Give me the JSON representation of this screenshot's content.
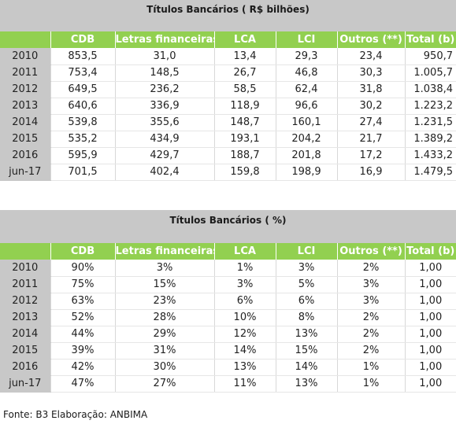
{
  "table_amounts": {
    "title": "Títulos Bancários ( R$ bilhões)",
    "headers": [
      "",
      "CDB",
      "Letras financeiras",
      "LCA",
      "LCI",
      "Outros (**)",
      "Total (b)"
    ],
    "rows": [
      [
        "2010",
        "853,5",
        "31,0",
        "13,4",
        "29,3",
        "23,4",
        "950,7"
      ],
      [
        "2011",
        "753,4",
        "148,5",
        "26,7",
        "46,8",
        "30,3",
        "1.005,7"
      ],
      [
        "2012",
        "649,5",
        "236,2",
        "58,5",
        "62,4",
        "31,8",
        "1.038,4"
      ],
      [
        "2013",
        "640,6",
        "336,9",
        "118,9",
        "96,6",
        "30,2",
        "1.223,2"
      ],
      [
        "2014",
        "539,8",
        "355,6",
        "148,7",
        "160,1",
        "27,4",
        "1.231,5"
      ],
      [
        "2015",
        "535,2",
        "434,9",
        "193,1",
        "204,2",
        "21,7",
        "1.389,2"
      ],
      [
        "2016",
        "595,9",
        "429,7",
        "188,7",
        "201,8",
        "17,2",
        "1.433,2"
      ],
      [
        "jun-17",
        "701,5",
        "402,4",
        "159,8",
        "198,9",
        "16,9",
        "1.479,5"
      ]
    ]
  },
  "table_percent": {
    "title": "Títulos Bancários ( %)",
    "headers": [
      "",
      "CDB",
      "Letras financeiras",
      "LCA",
      "LCI",
      "Outros (**)",
      "Total (b)"
    ],
    "rows": [
      [
        "2010",
        "90%",
        "3%",
        "1%",
        "3%",
        "2%",
        "1,00"
      ],
      [
        "2011",
        "75%",
        "15%",
        "3%",
        "5%",
        "3%",
        "1,00"
      ],
      [
        "2012",
        "63%",
        "23%",
        "6%",
        "6%",
        "3%",
        "1,00"
      ],
      [
        "2013",
        "52%",
        "28%",
        "10%",
        "8%",
        "2%",
        "1,00"
      ],
      [
        "2014",
        "44%",
        "29%",
        "12%",
        "13%",
        "2%",
        "1,00"
      ],
      [
        "2015",
        "39%",
        "31%",
        "14%",
        "15%",
        "2%",
        "1,00"
      ],
      [
        "2016",
        "42%",
        "30%",
        "13%",
        "14%",
        "1%",
        "1,00"
      ],
      [
        "jun-17",
        "47%",
        "27%",
        "11%",
        "13%",
        "1%",
        "1,00"
      ]
    ]
  },
  "source": "Fonte: B3  Elaboração: ANBIMA",
  "colors": {
    "header_green": "#92d050",
    "title_gray": "#c8c8c8",
    "year_gray": "#c8c8c8"
  }
}
